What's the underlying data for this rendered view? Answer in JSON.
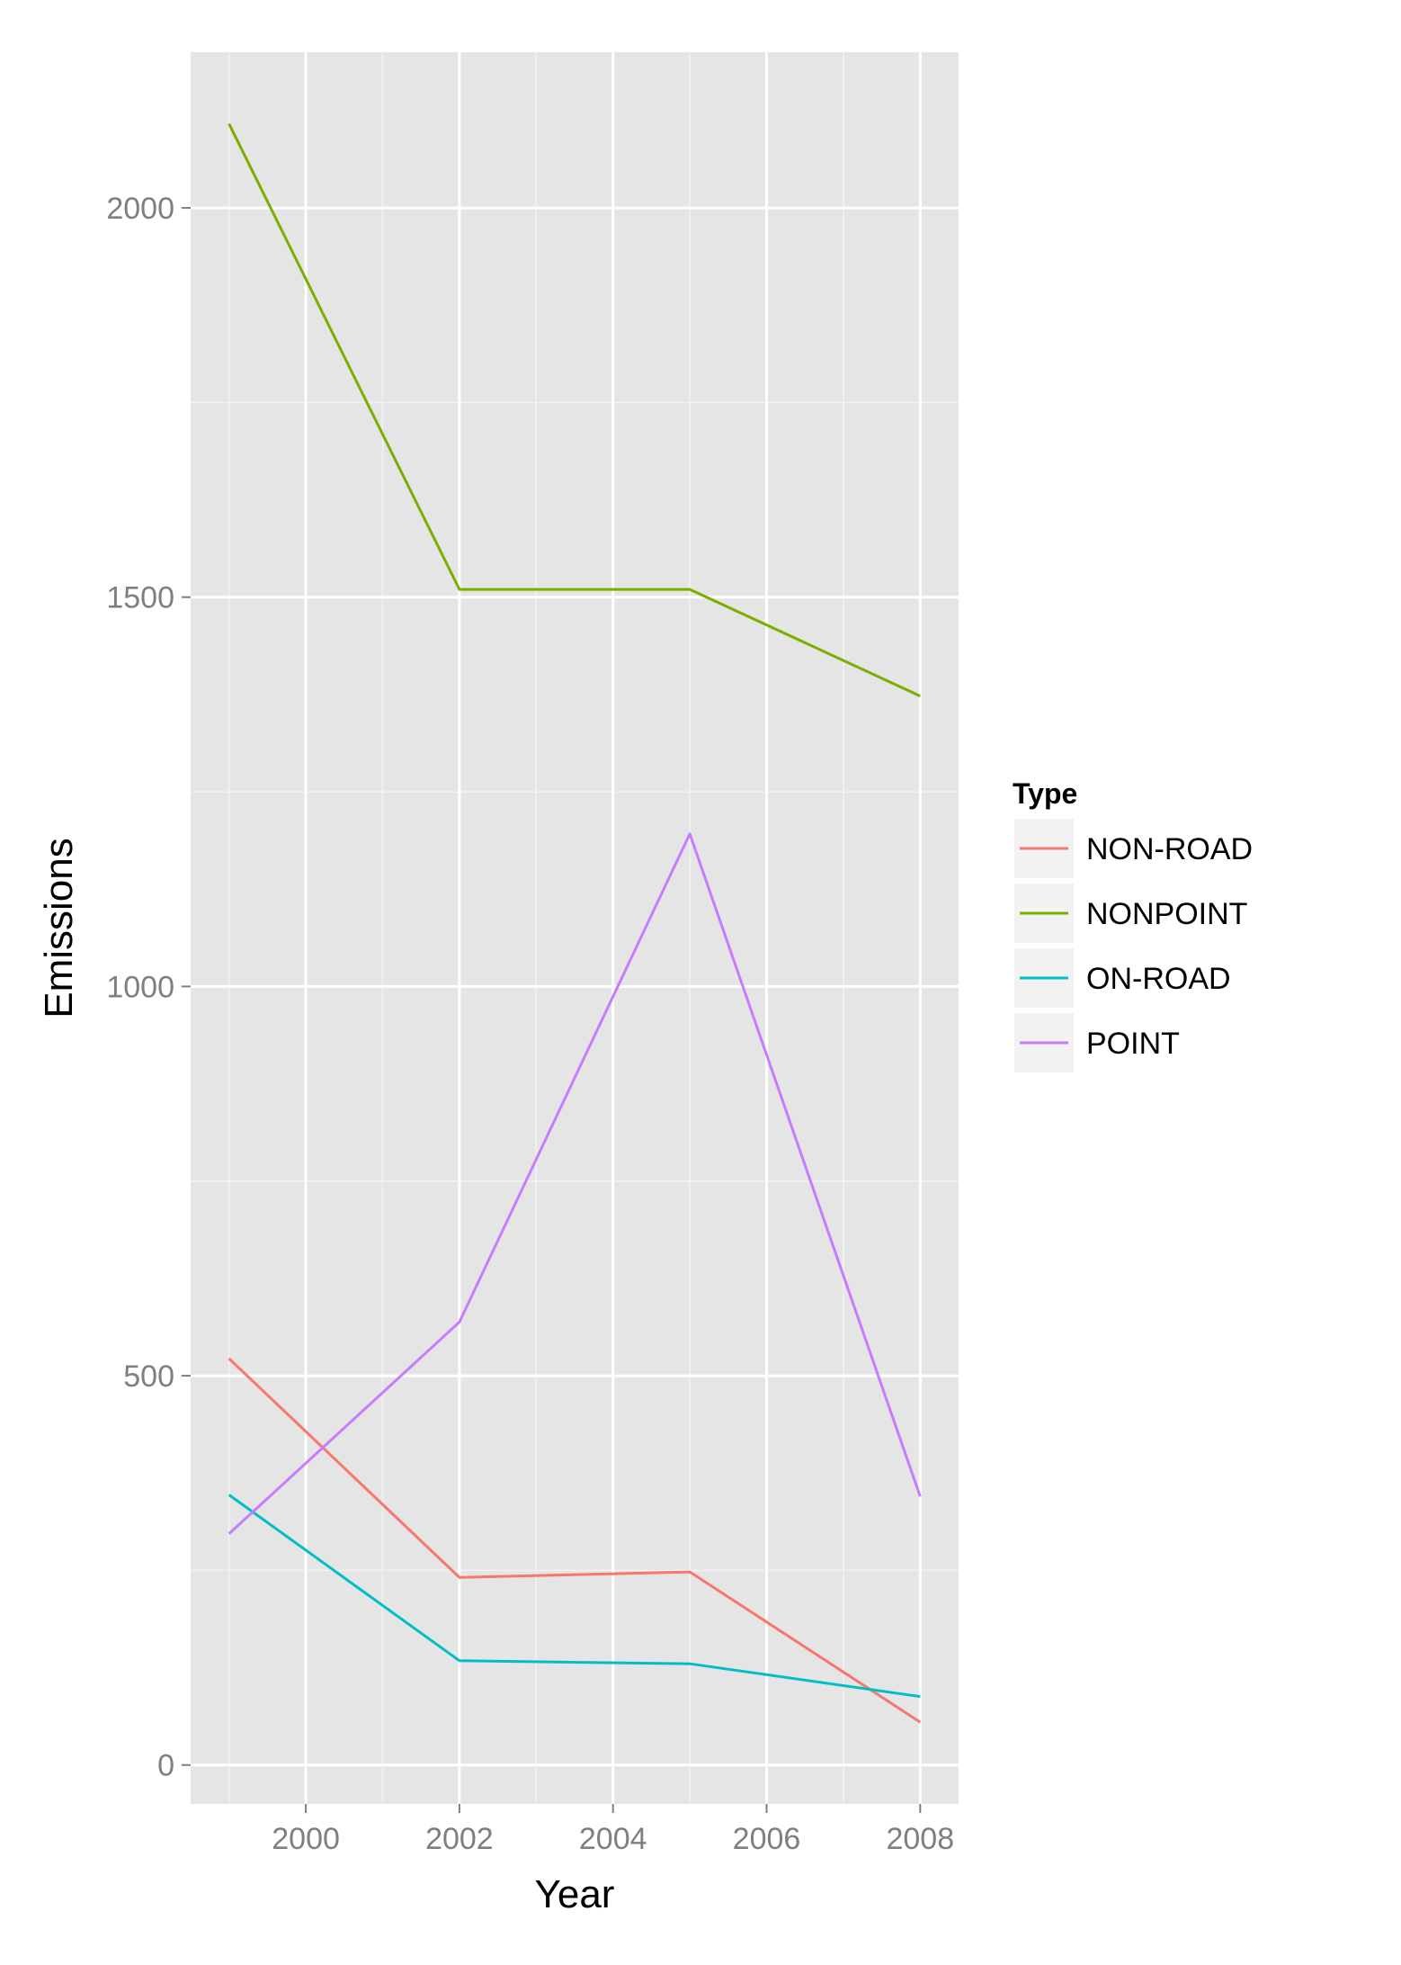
{
  "chart_data": {
    "type": "line",
    "title": "",
    "xlabel": "Year",
    "ylabel": "Emissions",
    "x": [
      1999,
      2002,
      2005,
      2008
    ],
    "xlim": [
      1998.5,
      2008.5
    ],
    "ylim": [
      -50,
      2200
    ],
    "x_ticks": [
      2000,
      2002,
      2004,
      2006,
      2008
    ],
    "x_tick_labels": [
      "2000",
      "2002",
      "2004",
      "2006",
      "2008"
    ],
    "y_ticks": [
      0,
      500,
      1000,
      1500,
      2000
    ],
    "y_tick_labels": [
      "0",
      "500",
      "1000",
      "1500",
      "2000"
    ],
    "grid": true,
    "legend": {
      "title": "Type",
      "position": "right"
    },
    "series": [
      {
        "name": "NON-ROAD",
        "color": "#F8766D",
        "values": [
          522,
          241,
          248,
          55
        ]
      },
      {
        "name": "NONPOINT",
        "color": "#7CAE00",
        "values": [
          2108,
          1510,
          1510,
          1373
        ]
      },
      {
        "name": "ON-ROAD",
        "color": "#00BFC4",
        "values": [
          347,
          134,
          130,
          88
        ]
      },
      {
        "name": "POINT",
        "color": "#C77CFF",
        "values": [
          297,
          569,
          1196,
          345
        ]
      }
    ]
  },
  "colors": {
    "panel_background": "#E5E5E5",
    "major_grid": "#FFFFFF",
    "minor_grid": "#F2F2F2",
    "tick_label": "#7F7F7F",
    "axis_title": "#000000",
    "legend_key_background": "#F2F2F2"
  }
}
